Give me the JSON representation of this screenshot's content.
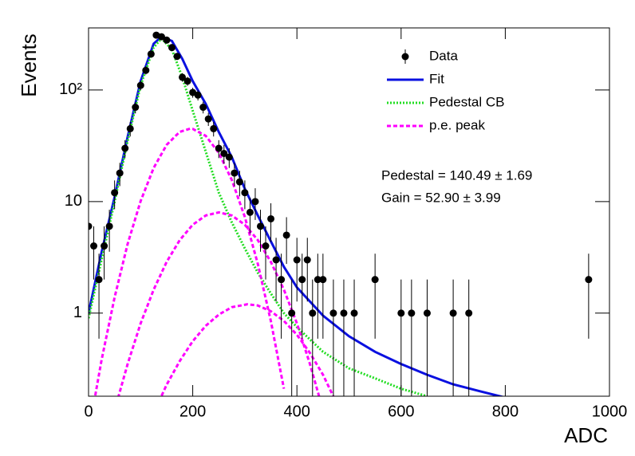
{
  "chart_data": {
    "type": "line",
    "x_label": "ADC",
    "y_label": "Events",
    "log_y": true,
    "xlim": [
      0,
      1000
    ],
    "ylim": [
      0.18,
      360
    ],
    "xticks": [
      0,
      200,
      400,
      600,
      800,
      1000
    ],
    "yticks": [
      1,
      10,
      {
        "value": 100,
        "label": "10²"
      }
    ],
    "legend": "top-right",
    "annotations": [
      "Pedestal = 140.49 ± 1.69",
      "Gain = 52.90 ± 3.99"
    ],
    "series": [
      {
        "name": "Data",
        "color": "#000000",
        "style": "markers",
        "x": [
          0,
          10,
          20,
          30,
          40,
          50,
          60,
          70,
          80,
          90,
          100,
          110,
          120,
          130,
          140,
          150,
          160,
          170,
          180,
          190,
          200,
          210,
          220,
          230,
          240,
          250,
          260,
          270,
          280,
          290,
          300,
          310,
          320,
          330,
          340,
          350,
          360,
          370,
          380,
          390,
          400,
          410,
          420,
          430,
          440,
          450,
          470,
          490,
          510,
          550,
          600,
          620,
          650,
          700,
          730,
          960
        ],
        "values": [
          6,
          4,
          2,
          4,
          6,
          12,
          18,
          30,
          45,
          70,
          110,
          150,
          210,
          310,
          300,
          280,
          240,
          200,
          130,
          120,
          95,
          90,
          70,
          55,
          45,
          30,
          27,
          25,
          18,
          15,
          12,
          8,
          10,
          6,
          4,
          7,
          3,
          2,
          5,
          1,
          3,
          2,
          3,
          1,
          2,
          2,
          1,
          1,
          1,
          2,
          1,
          1,
          1,
          1,
          1,
          2
        ],
        "errors": [
          2.45,
          2,
          1.41,
          2,
          2.45,
          3.46,
          4.24,
          5.48,
          6.71,
          8.37,
          10.49,
          12.25,
          14.49,
          17.61,
          17.32,
          16.73,
          15.49,
          14.14,
          11.4,
          10.95,
          9.75,
          9.49,
          8.37,
          7.42,
          6.71,
          5.48,
          5.2,
          5,
          4.24,
          3.87,
          3.46,
          2.83,
          3.16,
          2.45,
          2,
          2.65,
          1.73,
          1.41,
          2.24,
          1,
          1.73,
          1.41,
          1.73,
          1,
          1.41,
          1.41,
          1,
          1,
          1,
          1.41,
          1,
          1,
          1,
          1,
          1,
          1.41
        ]
      },
      {
        "name": "Fit",
        "color": "#0a10e0",
        "style": "solid",
        "x": [
          0,
          25,
          50,
          75,
          100,
          125,
          140,
          160,
          180,
          200,
          225,
          250,
          275,
          300,
          325,
          350,
          375,
          400,
          450,
          500,
          550,
          600,
          650,
          700,
          750,
          800
        ],
        "values": [
          1.0,
          3.5,
          11,
          38,
          120,
          260,
          300,
          275,
          190,
          120,
          75,
          42,
          25,
          13,
          7.5,
          4.4,
          2.6,
          1.7,
          0.95,
          0.62,
          0.45,
          0.35,
          0.28,
          0.23,
          0.2,
          0.175
        ]
      },
      {
        "name": "Pedestal CB",
        "color": "#22dd22",
        "style": "dotted",
        "x": [
          0,
          25,
          50,
          75,
          100,
          125,
          140,
          160,
          180,
          200,
          225,
          250,
          275,
          300,
          325,
          350,
          375,
          400,
          450,
          500,
          550,
          600,
          650
        ],
        "values": [
          0.9,
          3,
          10,
          35,
          110,
          240,
          290,
          230,
          130,
          65,
          28,
          12,
          6.5,
          3.8,
          2.3,
          1.5,
          1.0,
          0.75,
          0.45,
          0.32,
          0.26,
          0.21,
          0.18
        ]
      },
      {
        "name": "p.e. peak",
        "color": "#ff00ff",
        "style": "dashed",
        "x": [
          0,
          25,
          50,
          75,
          100,
          125,
          150,
          175,
          195,
          200,
          225,
          250,
          275,
          300,
          325,
          350,
          375
        ],
        "values": [
          0.084,
          0.379,
          1.39,
          4.17,
          10.1,
          20.0,
          32.2,
          42.1,
          45,
          44.8,
          38.8,
          27.3,
          15.6,
          7.28,
          2.76,
          0.85,
          0.21
        ]
      },
      {
        "color": "#ff00ff",
        "style": "dashed",
        "x": [
          50,
          75,
          100,
          125,
          150,
          175,
          200,
          225,
          250,
          275,
          300,
          325,
          350,
          375,
          400,
          425,
          450
        ],
        "values": [
          0.135,
          0.35,
          0.81,
          1.62,
          2.88,
          4.51,
          6.2,
          7.5,
          8,
          7.5,
          6.2,
          4.51,
          2.88,
          1.62,
          0.81,
          0.35,
          0.135
        ]
      },
      {
        "color": "#ff00ff",
        "style": "dashed",
        "x": [
          125,
          150,
          175,
          200,
          225,
          250,
          275,
          305,
          325,
          350,
          375,
          400,
          425,
          450,
          475
        ],
        "values": [
          0.127,
          0.228,
          0.372,
          0.56,
          0.77,
          0.97,
          1.13,
          1.2,
          1.17,
          1.04,
          0.85,
          0.64,
          0.44,
          0.28,
          0.16
        ]
      }
    ]
  }
}
